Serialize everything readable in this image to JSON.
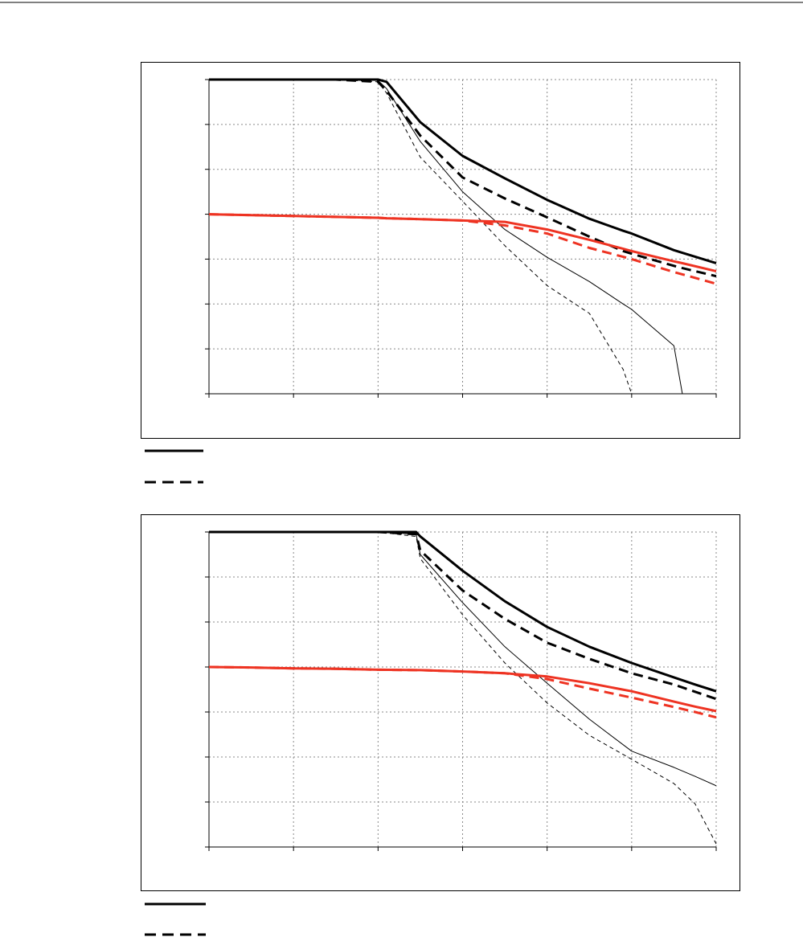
{
  "chart_data": [
    {
      "type": "line",
      "xlim": [
        0,
        6
      ],
      "ylim": [
        0,
        7
      ],
      "xticks": [
        0,
        1,
        2,
        3,
        4,
        5,
        6
      ],
      "yticks": [
        0,
        1,
        2,
        3,
        4,
        5,
        6,
        7
      ],
      "grid": true,
      "x": [
        0,
        0.5,
        1,
        1.5,
        2,
        2.1,
        2.5,
        3,
        3.5,
        4,
        4.5,
        4.9,
        5,
        5.5,
        5.6,
        6
      ],
      "series": [
        {
          "color": "#000000",
          "width": 3,
          "dash": false,
          "values": [
            7,
            7,
            7,
            7,
            7,
            6.95,
            6.05,
            5.3,
            4.8,
            4.32,
            3.9,
            3.63,
            3.57,
            3.2,
            3.14,
            2.91
          ]
        },
        {
          "color": "#000000",
          "width": 3,
          "dash": true,
          "values": [
            7,
            7,
            7,
            7,
            6.95,
            6.75,
            5.75,
            4.82,
            4.35,
            3.93,
            3.5,
            3.18,
            3.12,
            2.85,
            2.8,
            2.62
          ]
        },
        {
          "color": "#000000",
          "width": 1,
          "dash": false,
          "values": [
            7,
            7,
            7,
            7,
            6.98,
            6.8,
            5.62,
            4.5,
            3.66,
            3.04,
            2.5,
            2.0,
            1.88,
            1.07,
            0,
            0
          ]
        },
        {
          "color": "#000000",
          "width": 1,
          "dash": true,
          "values": [
            7,
            7,
            7,
            7,
            6.95,
            6.7,
            5.27,
            4.29,
            3.3,
            2.41,
            1.79,
            0.54,
            0,
            0,
            0,
            0
          ]
        },
        {
          "color": "#ee3322",
          "width": 3,
          "dash": false,
          "values": [
            4,
            3.98,
            3.96,
            3.94,
            3.92,
            3.91,
            3.89,
            3.86,
            3.83,
            3.66,
            3.43,
            3.23,
            3.18,
            2.95,
            2.91,
            2.73
          ]
        },
        {
          "color": "#ee3322",
          "width": 3,
          "dash": true,
          "values": [
            4,
            3.98,
            3.96,
            3.94,
            3.92,
            3.91,
            3.89,
            3.86,
            3.75,
            3.57,
            3.25,
            3.05,
            3.0,
            2.71,
            2.66,
            2.45
          ]
        }
      ]
    },
    {
      "type": "line",
      "xlim": [
        0,
        6
      ],
      "ylim": [
        0,
        7
      ],
      "xticks": [
        0,
        1,
        2,
        3,
        4,
        5,
        6
      ],
      "yticks": [
        0,
        1,
        2,
        3,
        4,
        5,
        6,
        7
      ],
      "grid": true,
      "x": [
        0,
        0.5,
        1,
        1.5,
        2,
        2.45,
        2.5,
        3,
        3.5,
        4,
        4.5,
        5,
        5.5,
        5.75,
        6
      ],
      "series": [
        {
          "color": "#000000",
          "width": 3,
          "dash": false,
          "values": [
            7,
            7,
            7,
            7,
            7,
            7,
            6.9,
            6.14,
            5.46,
            4.89,
            4.45,
            4.09,
            3.77,
            3.61,
            3.46
          ]
        },
        {
          "color": "#000000",
          "width": 3,
          "dash": true,
          "values": [
            7,
            7,
            7,
            7,
            7,
            6.95,
            6.59,
            5.7,
            5.07,
            4.54,
            4.18,
            3.86,
            3.61,
            3.45,
            3.29
          ]
        },
        {
          "color": "#000000",
          "width": 1,
          "dash": false,
          "values": [
            7,
            7,
            7,
            7,
            7,
            6.95,
            6.5,
            5.43,
            4.45,
            3.64,
            2.84,
            2.13,
            1.77,
            1.57,
            1.36
          ]
        },
        {
          "color": "#000000",
          "width": 1,
          "dash": true,
          "values": [
            7,
            7,
            7,
            7,
            7,
            6.9,
            6.41,
            5.16,
            4.09,
            3.2,
            2.48,
            1.95,
            1.41,
            0.96,
            0.07
          ]
        },
        {
          "color": "#ee3322",
          "width": 3,
          "dash": false,
          "values": [
            4,
            3.99,
            3.97,
            3.96,
            3.94,
            3.93,
            3.93,
            3.9,
            3.86,
            3.79,
            3.64,
            3.46,
            3.23,
            3.12,
            3.02
          ]
        },
        {
          "color": "#ee3322",
          "width": 3,
          "dash": true,
          "values": [
            4,
            3.99,
            3.97,
            3.96,
            3.94,
            3.93,
            3.93,
            3.9,
            3.86,
            3.73,
            3.52,
            3.32,
            3.11,
            3.0,
            2.88
          ]
        }
      ]
    }
  ]
}
